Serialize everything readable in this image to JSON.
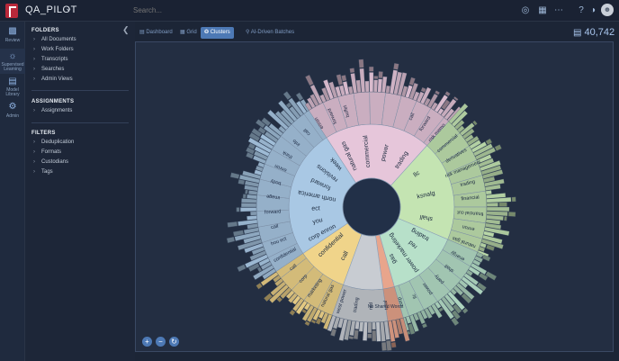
{
  "app": {
    "project_name": "QA_PILOT"
  },
  "search": {
    "placeholder": "Search..."
  },
  "rail": [
    {
      "label": "Review",
      "icon": "bar-chart-icon"
    },
    {
      "label": "Supervised Learning",
      "icon": "lightbulb-icon"
    },
    {
      "label": "Model Library",
      "icon": "books-icon"
    },
    {
      "label": "Admin",
      "icon": "gear-icon"
    }
  ],
  "sidebar": {
    "folders_title": "FOLDERS",
    "folders": [
      "All Documents",
      "Work Folders",
      "Transcripts",
      "Searches",
      "Admin Views"
    ],
    "assignments_title": "ASSIGNMENTS",
    "assignments": [
      "Assignments"
    ],
    "filters_title": "FILTERS",
    "filters": [
      "Deduplication",
      "Formats",
      "Custodians",
      "Tags"
    ]
  },
  "tabs": [
    {
      "label": "Dashboard",
      "icon": "dashboard-icon"
    },
    {
      "label": "Grid",
      "icon": "grid-icon"
    },
    {
      "label": "Clusters",
      "icon": "clusters-icon",
      "active": true
    },
    {
      "label": "AI-Driven Batches",
      "icon": "pin-icon"
    }
  ],
  "doc_count": "40,742",
  "chart_data": {
    "type": "sunburst",
    "inner_segments": [
      {
        "color": "#f0d48a",
        "labels": [
          "call",
          "confidential"
        ]
      },
      {
        "color": "#a9c8e4",
        "labels": [
          "corp enron",
          "you",
          "ect",
          "north america",
          "forward",
          "revisions",
          "week"
        ]
      },
      {
        "color": "#e6c6da",
        "labels": [
          "natural gas",
          "commercial",
          "power",
          "trading"
        ]
      },
      {
        "color": "#c4e4b2",
        "labels": [
          "llc",
          "ksnalg",
          "shall"
        ]
      },
      {
        "color": "#b7e0c9",
        "labels": [
          "trading",
          "red",
          "power marketing",
          "gas"
        ]
      },
      {
        "color": "#e8a58c",
        "labels": []
      },
      {
        "color": "#c8ccd2",
        "labels": []
      }
    ],
    "middle_labels": [
      "call",
      "forward",
      "risk memo",
      "commercial",
      "derivatives",
      "risk management",
      "trading",
      "financial",
      "financial cut",
      "enron",
      "natural gas",
      "energy",
      "shall",
      "party",
      "power",
      "llc",
      "corp",
      "total",
      "red",
      "trading",
      "west power",
      "natural gas",
      "marketing",
      "corp",
      "call",
      "confidential",
      "hou ect",
      "call",
      "forward",
      "image",
      "body",
      "enron",
      "think",
      "info",
      "call",
      "enron",
      "forward",
      "buffet"
    ],
    "outer_labels": [
      "No Shared Words"
    ]
  }
}
